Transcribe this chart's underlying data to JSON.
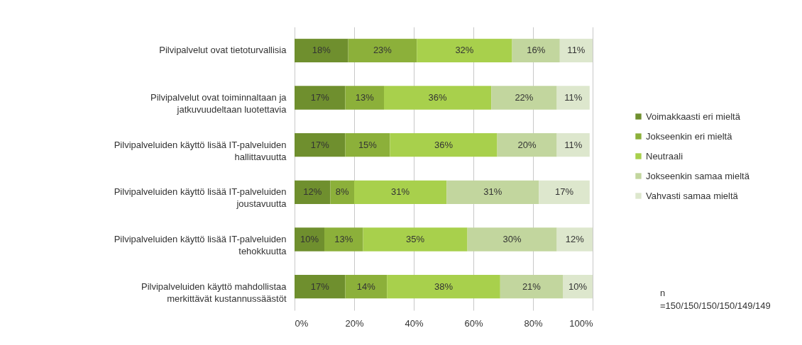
{
  "chart_data": {
    "type": "bar",
    "orientation": "horizontal",
    "stacked": true,
    "categories": [
      "Pilvipalvelut ovat tietoturvallisia",
      "Pilvipalvelut ovat toiminnaltaan ja jatkuvuudeltaan luotettavia",
      "Pilvipalveluiden käyttö lisää IT-palveluiden hallittavuutta",
      "Pilvipalveluiden käyttö lisää IT-palveluiden joustavuutta",
      "Pilvipalveluiden käyttö lisää IT-palveluiden tehokkuutta",
      "Pilvipalveluiden käyttö mahdollistaa merkittävät kustannussäästöt"
    ],
    "series": [
      {
        "name": "Voimakkaasti eri mieltä",
        "color": "#6f8f2e",
        "values": [
          18,
          17,
          17,
          12,
          10,
          17
        ],
        "value_labels": [
          "18%",
          "17%",
          "17%",
          "12%",
          "10%",
          "17%"
        ]
      },
      {
        "name": "Jokseenkin eri mieltä",
        "color": "#8cb03a",
        "values": [
          23,
          13,
          15,
          8,
          13,
          14
        ],
        "value_labels": [
          "23%",
          "13%",
          "15%",
          "8%",
          "13%",
          "14%"
        ]
      },
      {
        "name": "Neutraali",
        "color": "#a8d04c",
        "values": [
          32,
          36,
          36,
          31,
          35,
          38
        ],
        "value_labels": [
          "32%",
          "36%",
          "36%",
          "31%",
          "35%",
          "38%"
        ]
      },
      {
        "name": "Jokseenkin samaa mieltä",
        "color": "#c2d69e",
        "values": [
          16,
          22,
          20,
          31,
          30,
          21
        ],
        "value_labels": [
          "16%",
          "22%",
          "20%",
          "31%",
          "30%",
          "21%"
        ]
      },
      {
        "name": "Vahvasti samaa mieltä",
        "color": "#dde7cd",
        "values": [
          11,
          11,
          11,
          17,
          12,
          10
        ],
        "value_labels": [
          "11%",
          "11%",
          "11%",
          "17%",
          "12%",
          "10%"
        ]
      }
    ],
    "xlim": [
      0,
      100
    ],
    "xticks": [
      {
        "value": 0,
        "label": "0%"
      },
      {
        "value": 20,
        "label": "20%"
      },
      {
        "value": 40,
        "label": "40%"
      },
      {
        "value": 60,
        "label": "60%"
      },
      {
        "value": 80,
        "label": "80%"
      },
      {
        "value": 100,
        "label": "100%"
      }
    ],
    "grid": "x",
    "legend": "right",
    "annotations": [
      "n =150/150/150/150/149/149"
    ]
  }
}
